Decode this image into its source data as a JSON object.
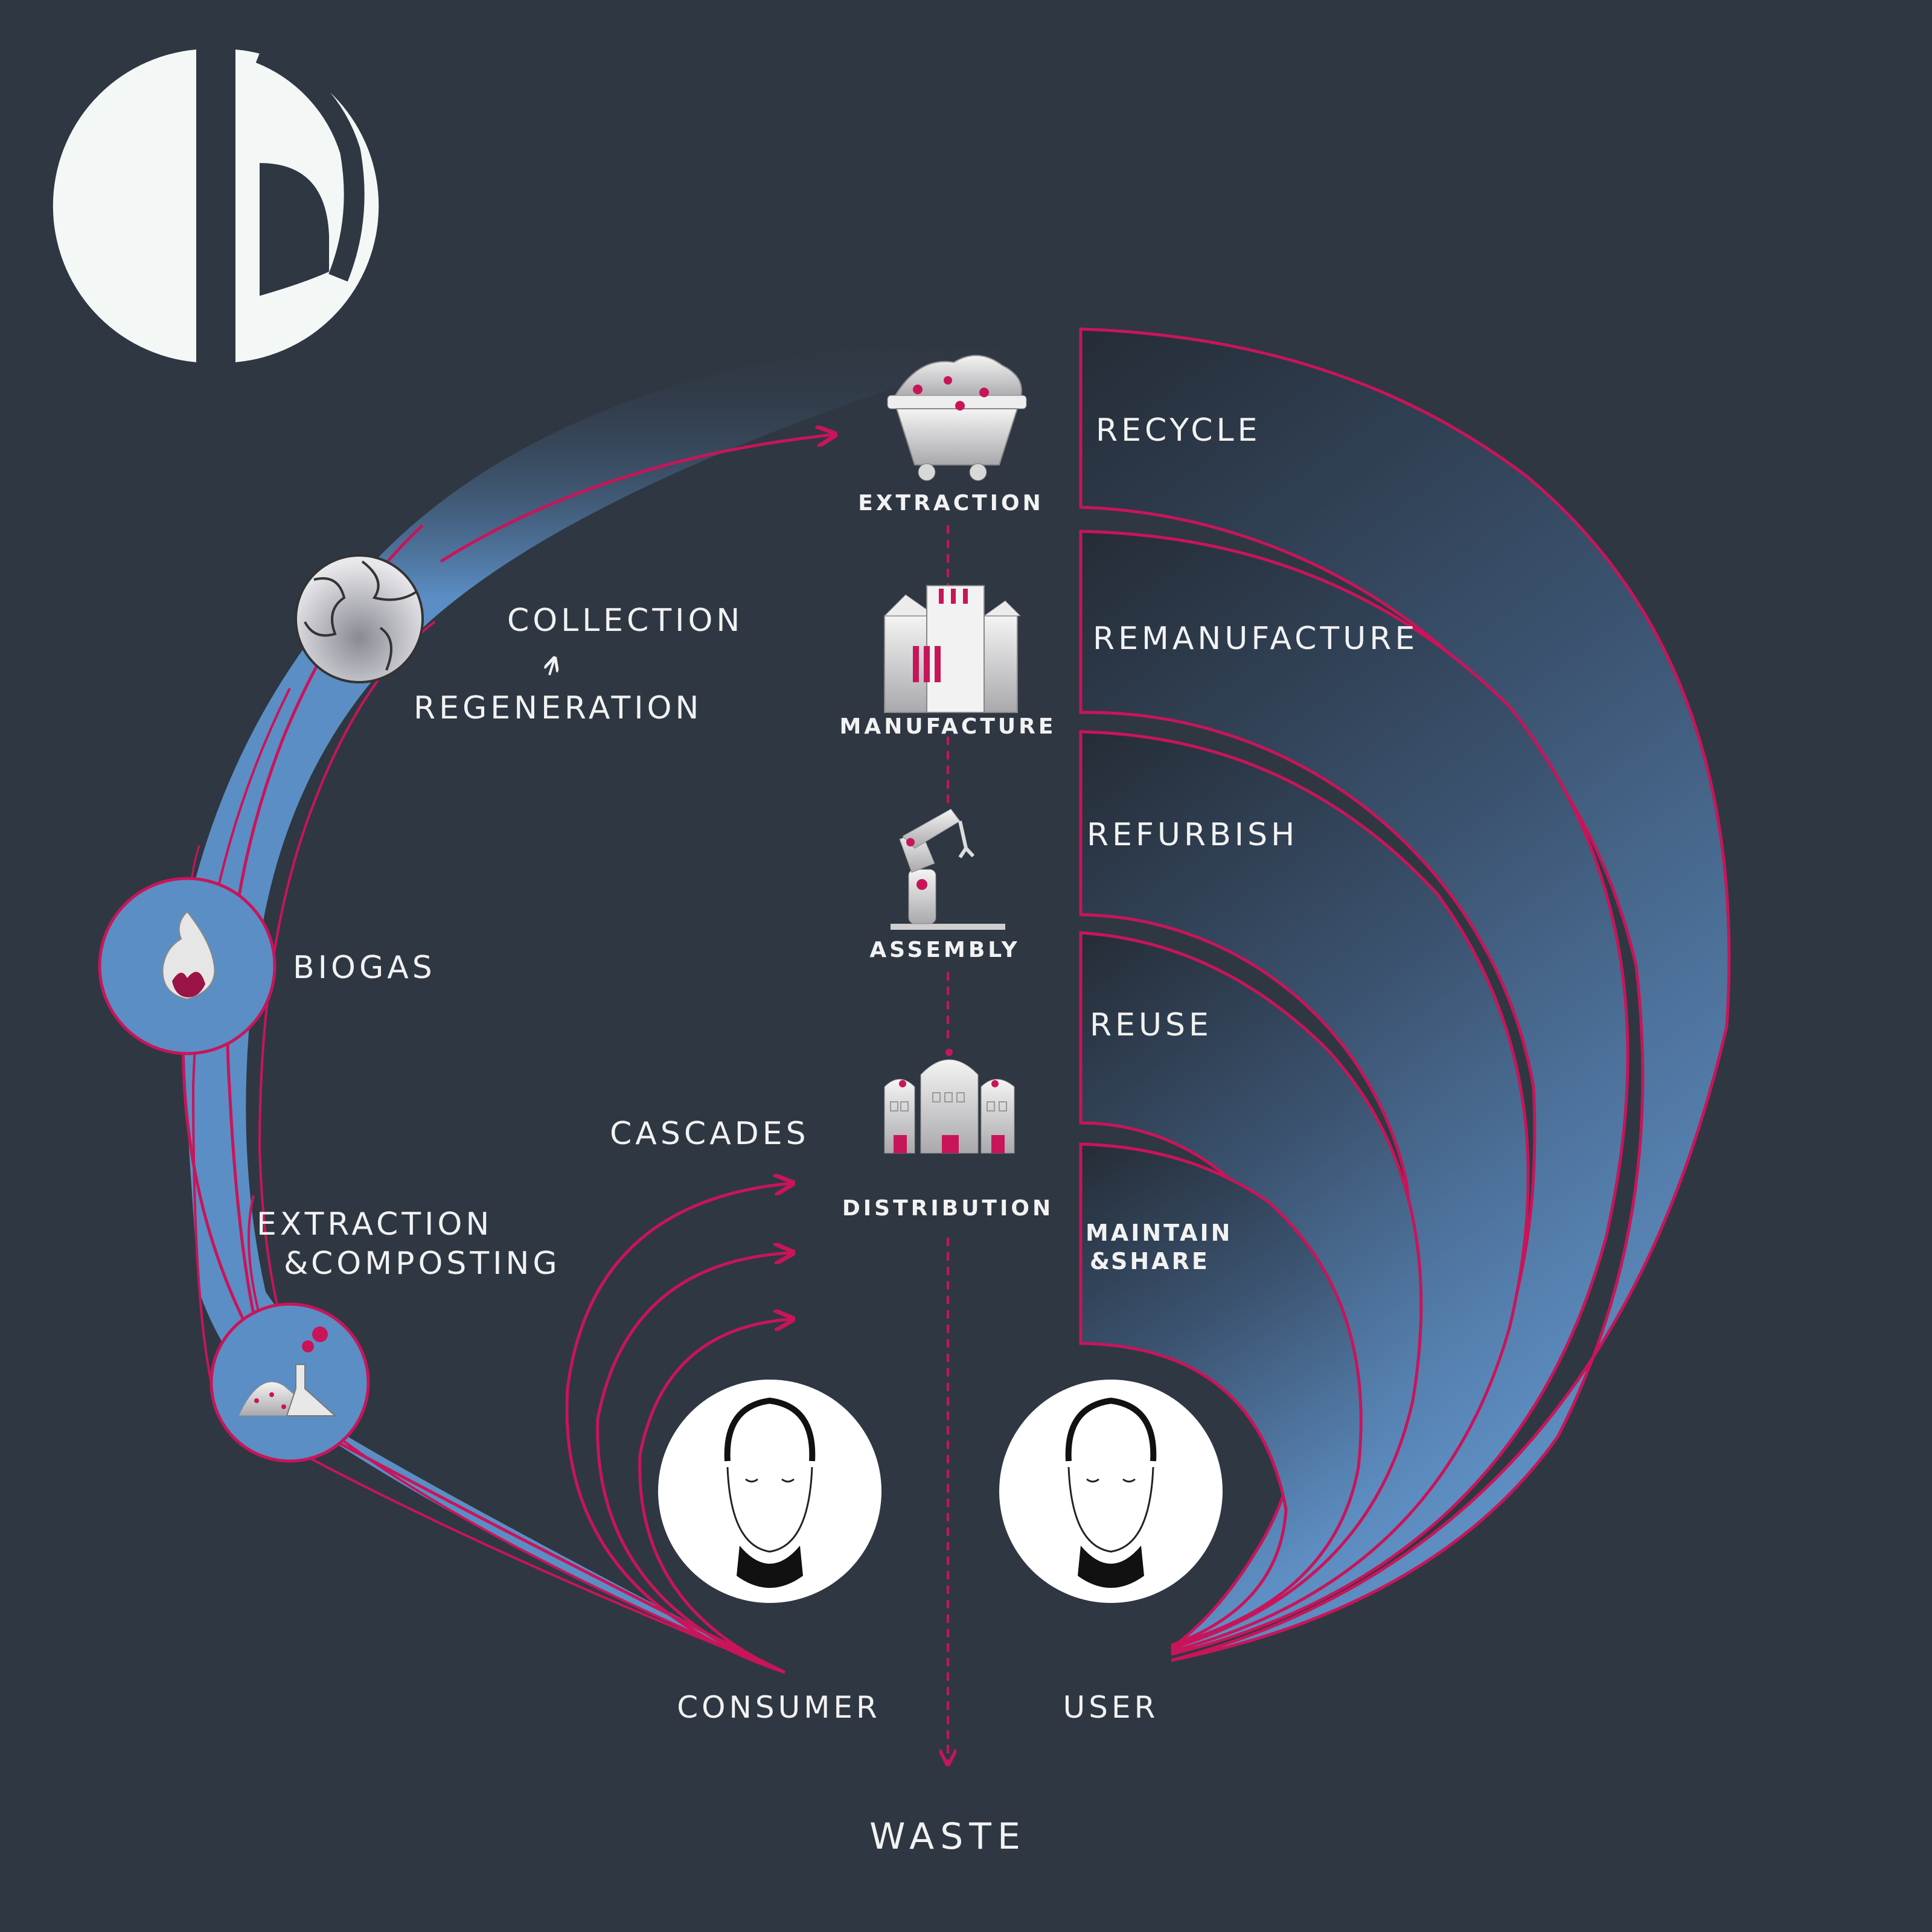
{
  "loops": {
    "recycle": "RECYCLE",
    "remanufacture": "REMANUFACTURE",
    "refurbish": "REFURBISH",
    "reuse": "REUSE",
    "maintain": "MAINTAIN",
    "share": "SHARE",
    "maintain_ampersand": "&"
  },
  "stages": {
    "extraction": "EXTRACTION",
    "manufacture": "MANUFACTURE",
    "assembly": "ASSEMBLY",
    "distribution": "DISTRIBUTION"
  },
  "biological": {
    "collection": "COLLECTION",
    "regeneration": "REGENERATION",
    "biogas": "BIOGAS",
    "extraction": "EXTRACTION",
    "composting": "COMPOSTING",
    "composting_ampersand": "&"
  },
  "cascades": "CASCADES",
  "consumer": "CONSUMER",
  "user": "USER",
  "waste": "WASTE",
  "colors": {
    "background": "#2f3742",
    "accent": "#c8155a",
    "blue": "#5b8ec4",
    "text": "#f2f2f2"
  },
  "icons": [
    "logo",
    "mine-cart-icon",
    "factory-icon",
    "robot-arm-icon",
    "building-icon",
    "globe-icon",
    "flame-icon",
    "compost-flask-icon",
    "face-icon"
  ]
}
